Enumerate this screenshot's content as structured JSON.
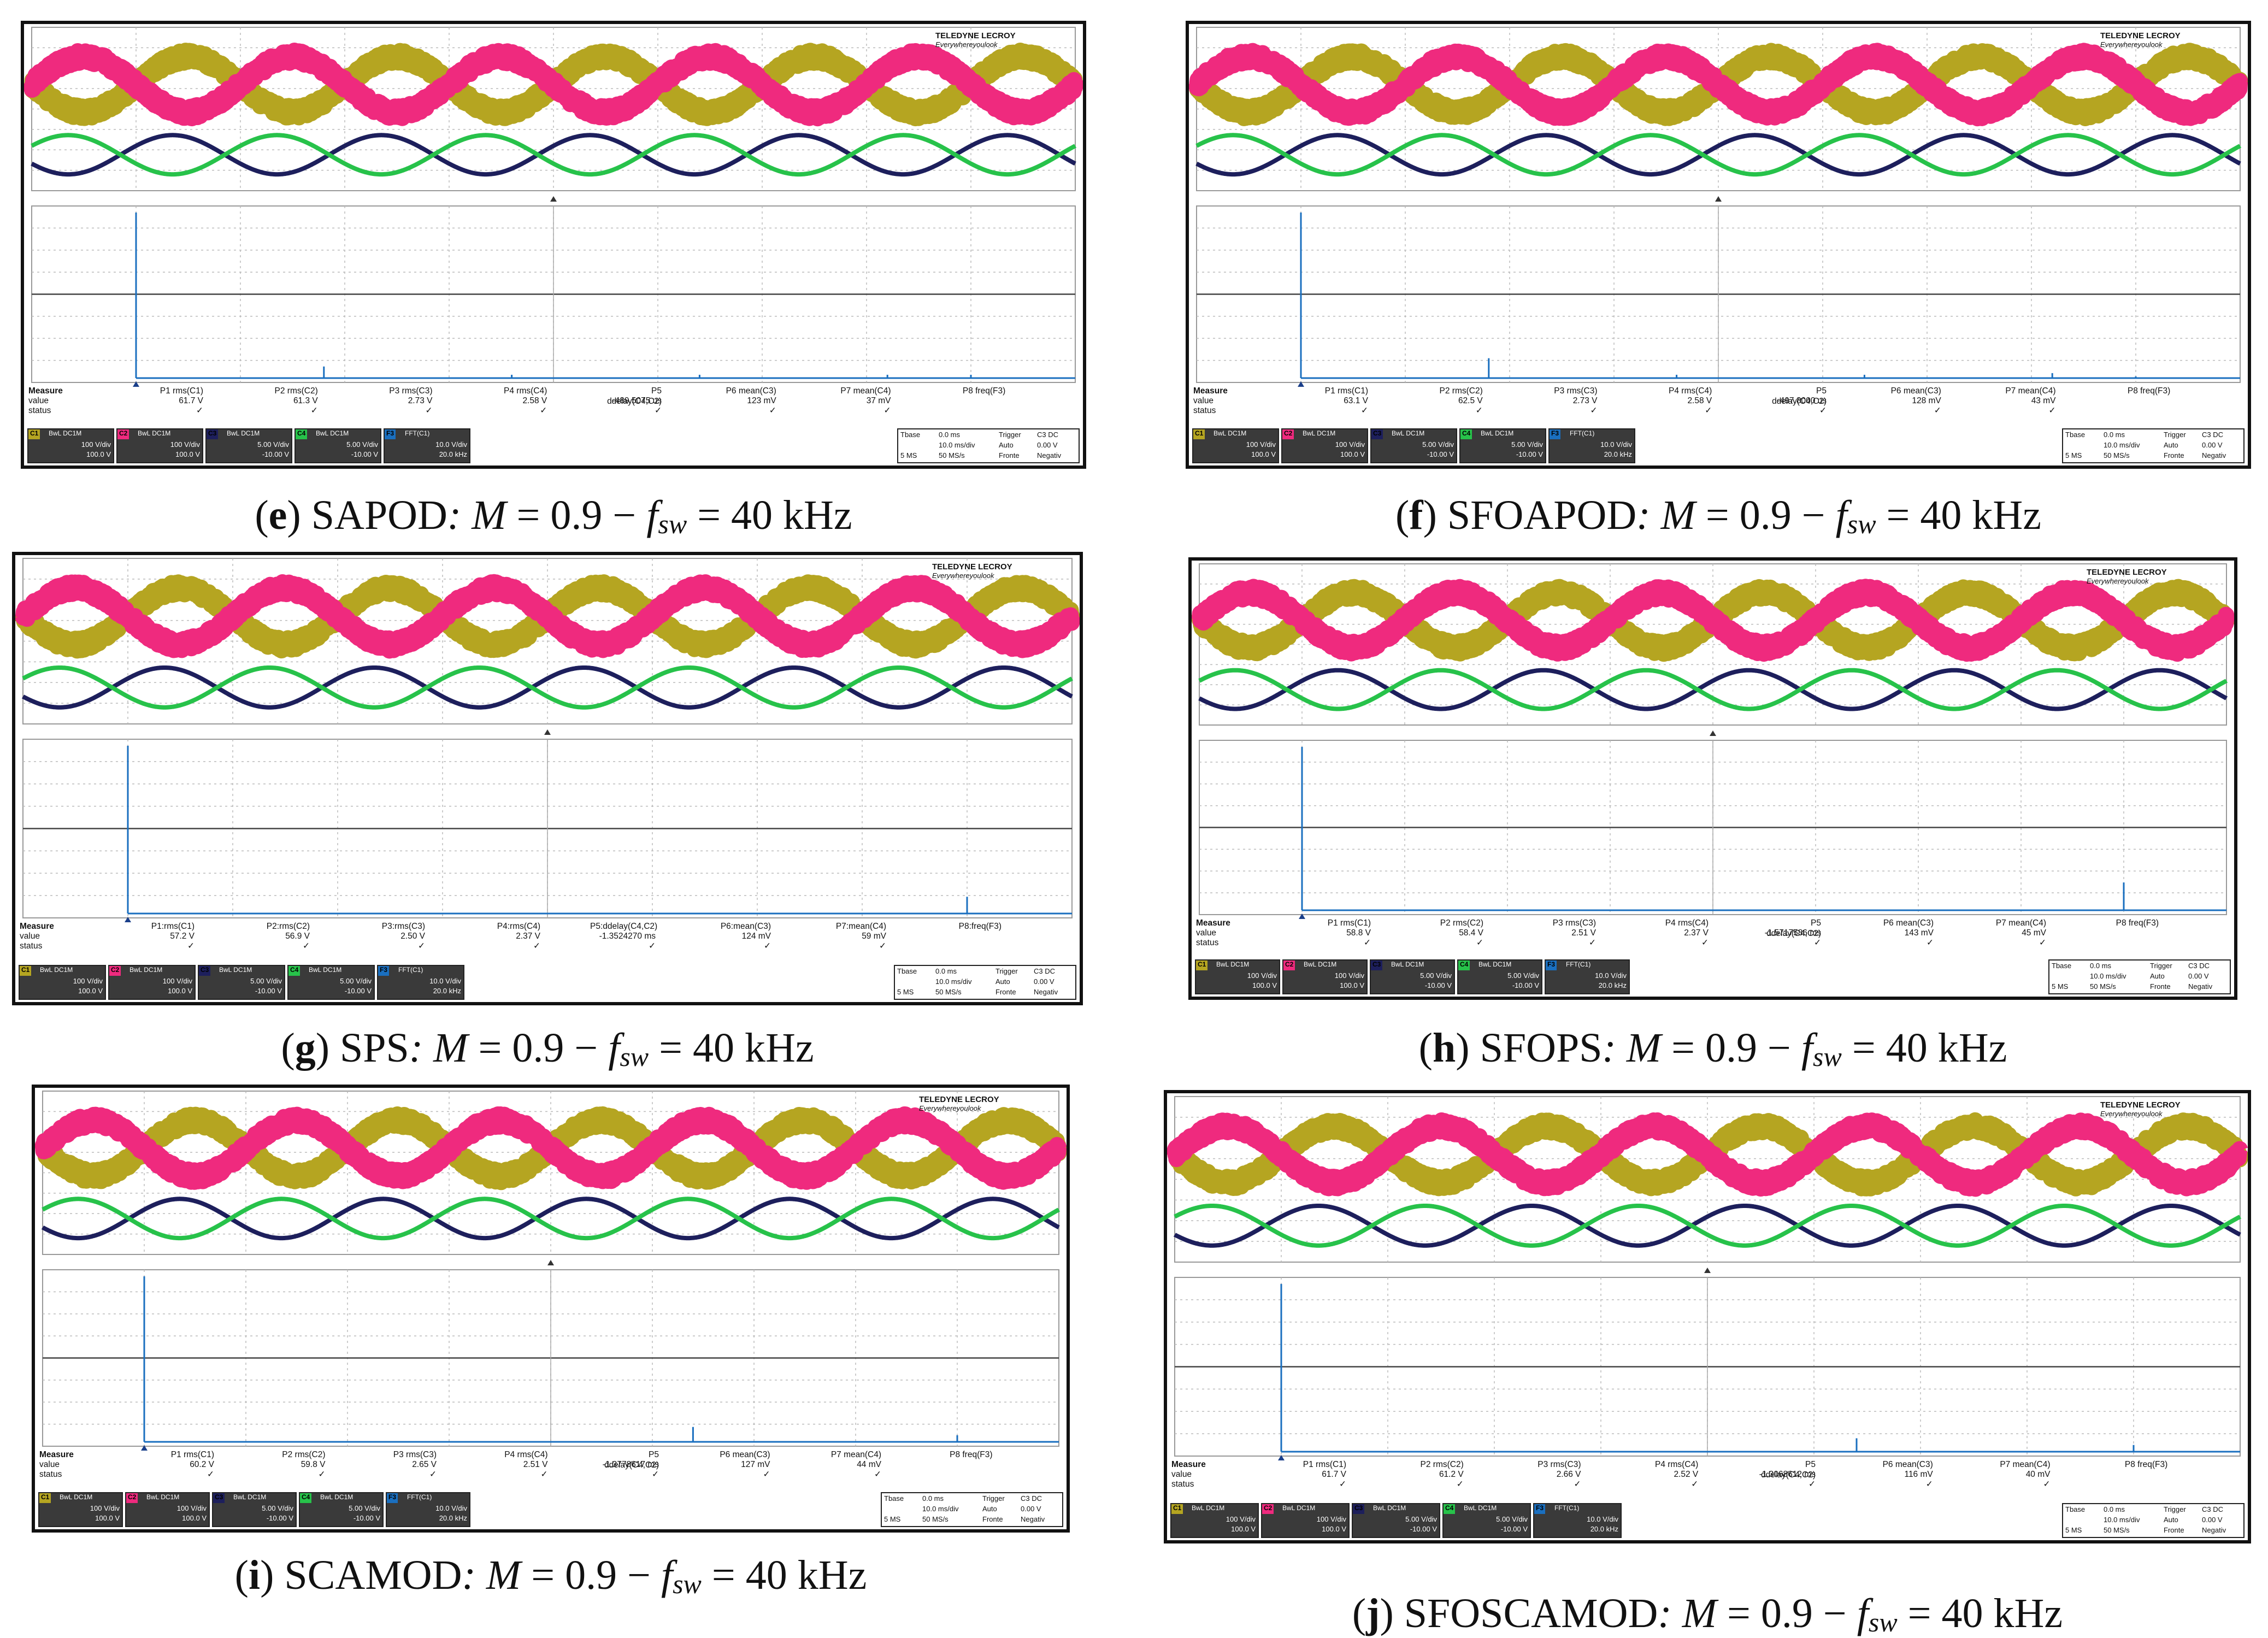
{
  "brand": {
    "name": "TELEDYNE LECROY",
    "tagline": "Everywhereyoulook"
  },
  "colors": {
    "c1": "#b5a521",
    "c2": "#ef2a7e",
    "c3": "#1d1f5c",
    "c4": "#27c24a",
    "fft": "#1a6fbf"
  },
  "measure_labels": {
    "measure": "Measure",
    "value": "value",
    "status": "status"
  },
  "channel_boxes": {
    "c1": {
      "tag": "C1",
      "coupling": "BwL DC1M",
      "scale": "100 V/div",
      "offset": "100.0 V"
    },
    "c2": {
      "tag": "C2",
      "coupling": "BwL DC1M",
      "scale": "100 V/div",
      "offset": "100.0 V"
    },
    "c3": {
      "tag": "C3",
      "coupling": "BwL DC1M",
      "scale": "5.00 V/div",
      "offset": "-10.00 V"
    },
    "c4": {
      "tag": "C4",
      "coupling": "BwL DC1M",
      "scale": "5.00 V/div",
      "offset": "-10.00 V"
    },
    "f3": {
      "tag": "F3",
      "coupling": "FFT(C1)",
      "scale": "10.0 V/div",
      "offset": "20.0 kHz"
    }
  },
  "timebase": {
    "tbase_label": "Tbase",
    "tbase_value": "0.0 ms",
    "trigger_label": "Trigger",
    "trigger_tag": "C3 DC",
    "scale": "10.0 ms/div",
    "mode": "Auto",
    "level": "0.00 V",
    "samples": "5 MS",
    "rate": "50 MS/s",
    "edge": "Fronte",
    "slope": "Negativ"
  },
  "panels": [
    {
      "letter": "e",
      "method": "SAPOD",
      "sep": ":",
      "m_label": "M",
      "m_value": "= 0.9 −",
      "f_label": "f",
      "f_sub": "sw",
      "f_value": "= 40 kHz",
      "measurements": [
        {
          "label": "P1 rms(C1)",
          "value": "61.7 V"
        },
        {
          "label": "P2 rms(C2)",
          "value": "61.3 V"
        },
        {
          "label": "P3 rms(C3)",
          "value": "2.73 V"
        },
        {
          "label": "P4 rms(C4)",
          "value": "2.58 V"
        },
        {
          "label": "P5 ddelay(C4,C2)",
          "value": "-489.5075 us"
        },
        {
          "label": "P6 mean(C3)",
          "value": "123 mV"
        },
        {
          "label": "P7 mean(C4)",
          "value": "37 mV"
        },
        {
          "label": "P8 freq(F3)",
          "value": ""
        }
      ],
      "spectrum_peaks": [
        1.0,
        0.07,
        0.02,
        0.02,
        0.02,
        0.02
      ]
    },
    {
      "letter": "f",
      "method": "SFOAPOD",
      "sep": ":",
      "m_label": "M",
      "m_value": "= 0.9 −",
      "f_label": "f",
      "f_sub": "sw",
      "f_value": "= 40 kHz",
      "measurements": [
        {
          "label": "P1 rms(C1)",
          "value": "63.1 V"
        },
        {
          "label": "P2 rms(C2)",
          "value": "62.5 V"
        },
        {
          "label": "P3 rms(C3)",
          "value": "2.73 V"
        },
        {
          "label": "P4 rms(C4)",
          "value": "2.58 V"
        },
        {
          "label": "P5 ddelay(C4,C2)",
          "value": "-497.8000 us"
        },
        {
          "label": "P6 mean(C3)",
          "value": "128 mV"
        },
        {
          "label": "P7 mean(C4)",
          "value": "43 mV"
        },
        {
          "label": "P8 freq(F3)",
          "value": ""
        }
      ],
      "spectrum_peaks": [
        1.0,
        0.12,
        0.02,
        0.02,
        0.03,
        0.01
      ]
    },
    {
      "letter": "g",
      "method": "SPS",
      "sep": ":",
      "m_label": "M",
      "m_value": "= 0.9 −",
      "f_label": "f",
      "f_sub": "sw",
      "f_value": "= 40 kHz",
      "measurements": [
        {
          "label": "P1:rms(C1)",
          "value": "57.2 V"
        },
        {
          "label": "P2:rms(C2)",
          "value": "56.9 V"
        },
        {
          "label": "P3:rms(C3)",
          "value": "2.50 V"
        },
        {
          "label": "P4:rms(C4)",
          "value": "2.37 V"
        },
        {
          "label": "P5:ddelay(C4,C2)",
          "value": "-1.3524270 ms"
        },
        {
          "label": "P6:mean(C3)",
          "value": "124 mV"
        },
        {
          "label": "P7:mean(C4)",
          "value": "59 mV"
        },
        {
          "label": "P8:freq(F3)",
          "value": ""
        }
      ],
      "spectrum_peaks": [
        1.0,
        0.0,
        0.0,
        0.0,
        0.0,
        0.1
      ]
    },
    {
      "letter": "h",
      "method": "SFOPS",
      "sep": ":",
      "m_label": "M",
      "m_value": "= 0.9 −",
      "f_label": "f",
      "f_sub": "sw",
      "f_value": "= 40 kHz",
      "measurements": [
        {
          "label": "P1 rms(C1)",
          "value": "58.8 V"
        },
        {
          "label": "P2 rms(C2)",
          "value": "58.4 V"
        },
        {
          "label": "P3 rms(C3)",
          "value": "2.51 V"
        },
        {
          "label": "P4 rms(C4)",
          "value": "2.37 V"
        },
        {
          "label": "P5 ddelay(C4,C2)",
          "value": "-1.5717586 ms"
        },
        {
          "label": "P6 mean(C3)",
          "value": "143 mV"
        },
        {
          "label": "P7 mean(C4)",
          "value": "45 mV"
        },
        {
          "label": "P8 freq(F3)",
          "value": ""
        }
      ],
      "spectrum_peaks": [
        1.0,
        0.0,
        0.0,
        0.0,
        0.0,
        0.17
      ]
    },
    {
      "letter": "i",
      "method": "SCAMOD",
      "sep": ":",
      "m_label": "M",
      "m_value": "= 0.9 −",
      "f_label": "f",
      "f_sub": "sw",
      "f_value": "= 40 kHz",
      "measurements": [
        {
          "label": "P1 rms(C1)",
          "value": "60.2 V"
        },
        {
          "label": "P2 rms(C2)",
          "value": "59.8 V"
        },
        {
          "label": "P3 rms(C3)",
          "value": "2.65 V"
        },
        {
          "label": "P4 rms(C4)",
          "value": "2.51 V"
        },
        {
          "label": "P5 ddelay(C4,C2)",
          "value": "-1.3778617 ms"
        },
        {
          "label": "P6 mean(C3)",
          "value": "127 mV"
        },
        {
          "label": "P7 mean(C4)",
          "value": "44 mV"
        },
        {
          "label": "P8 freq(F3)",
          "value": ""
        }
      ],
      "spectrum_peaks": [
        1.0,
        0.0,
        0.0,
        0.09,
        0.0,
        0.04
      ]
    },
    {
      "letter": "j",
      "method": "SFOSCAMOD",
      "sep": ":",
      "m_label": "M",
      "m_value": "= 0.9 −",
      "f_label": "f",
      "f_sub": "sw",
      "f_value": "= 40 kHz",
      "measurements": [
        {
          "label": "P1 rms(C1)",
          "value": "61.7 V"
        },
        {
          "label": "P2 rms(C2)",
          "value": "61.2 V"
        },
        {
          "label": "P3 rms(C3)",
          "value": "2.66 V"
        },
        {
          "label": "P4 rms(C4)",
          "value": "2.52 V"
        },
        {
          "label": "P5 ddelay(C4,C2)",
          "value": "-1.3068612 ms"
        },
        {
          "label": "P6 mean(C3)",
          "value": "116 mV"
        },
        {
          "label": "P7 mean(C4)",
          "value": "40 mV"
        },
        {
          "label": "P8 freq(F3)",
          "value": ""
        }
      ],
      "spectrum_peaks": [
        1.0,
        0.0,
        0.0,
        0.08,
        0.0,
        0.04
      ]
    }
  ]
}
